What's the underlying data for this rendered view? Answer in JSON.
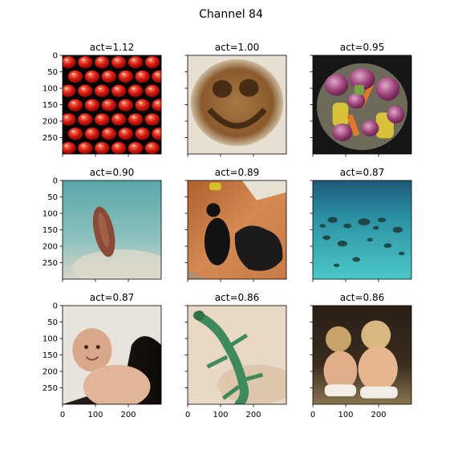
{
  "chart_data": {
    "type": "image_grid",
    "title": "Channel 84",
    "rows": 3,
    "cols": 3,
    "axis_range": [
      0,
      300
    ],
    "x_ticks": [
      0,
      100,
      200
    ],
    "y_ticks": [
      0,
      50,
      100,
      150,
      200,
      250
    ],
    "panels": [
      {
        "label": "act=1.12",
        "act": 1.12,
        "content": "red tomatoes on black"
      },
      {
        "label": "act=1.00",
        "act": 1.0,
        "content": "smiley face drawn in coffee"
      },
      {
        "label": "act=0.95",
        "act": 0.95,
        "content": "boiled potatoes, corn and carrots in a pot"
      },
      {
        "label": "act=0.90",
        "act": 0.9,
        "content": "fish on sandy seabed"
      },
      {
        "label": "act=0.89",
        "act": 0.89,
        "content": "black animal and dark debris on a floor"
      },
      {
        "label": "act=0.87",
        "act": 0.87,
        "content": "turquoise shallow reef"
      },
      {
        "label": "act=0.87",
        "act": 0.87,
        "content": "baby under a towel"
      },
      {
        "label": "act=0.86",
        "act": 0.86,
        "content": "green lizard on sand"
      },
      {
        "label": "act=0.86",
        "act": 0.86,
        "content": "two toddlers sitting from behind"
      }
    ]
  }
}
